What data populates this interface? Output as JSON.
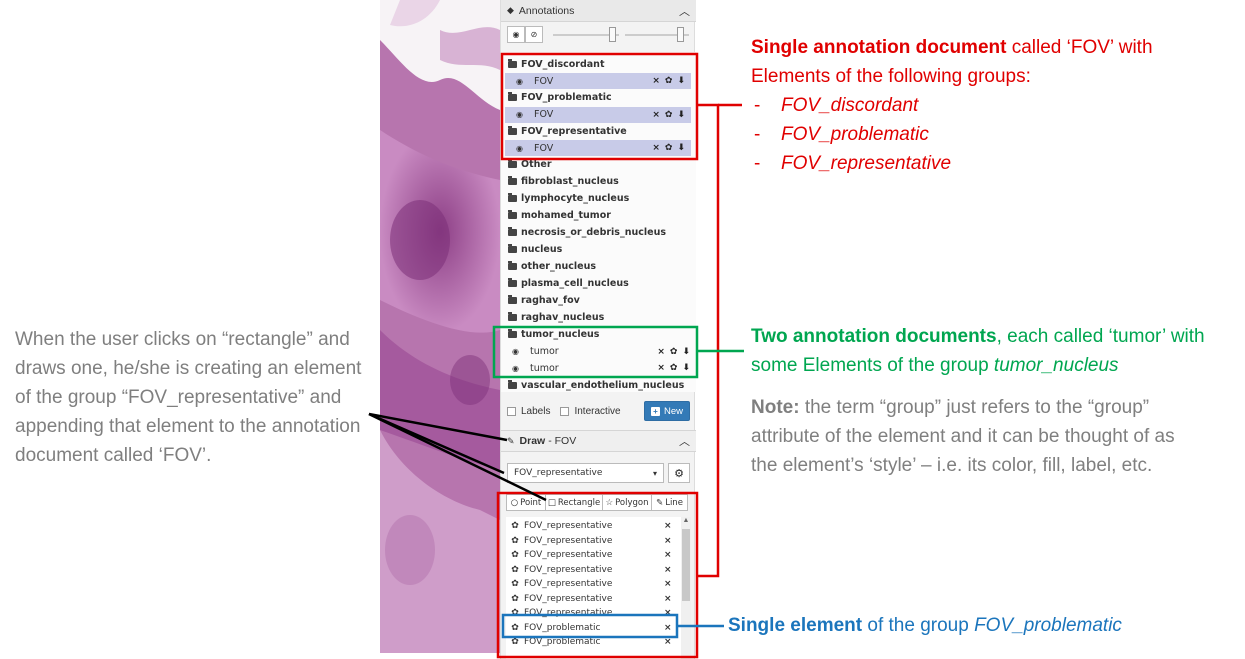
{
  "left_note": "When the user clicks on “rectangle” and draws one, he/she is creating an element of the group “FOV_representative” and appending that element to the annotation document called ‘FOV’.",
  "red_callout": {
    "bold": "Single annotation document",
    "rest": " called ‘FOV’ with Elements of the following groups:",
    "dash": "-",
    "items": [
      "FOV_discordant",
      "FOV_problematic",
      "FOV_representative"
    ]
  },
  "green_callout": {
    "bold": "Two annotation documents",
    "rest": ", each called ‘tumor’ with some Elements of the group ",
    "italic": "tumor_nucleus"
  },
  "gray_note": {
    "bold": "Note:",
    "rest": " the term “group” just refers to the “group” attribute of the element and it can be thought of as the element’s ‘style’ – i.e. its color, fill, label, etc."
  },
  "blue_callout": {
    "bold": "Single element",
    "rest": " of the group ",
    "italic": "FOV_problematic"
  },
  "annotations_panel": {
    "title": "Annotations",
    "chevron_icon": "chevron-up-icon",
    "folders": [
      {
        "name": "FOV_discordant",
        "docs": [
          {
            "label": "FOV",
            "highlight": true
          }
        ]
      },
      {
        "name": "FOV_problematic",
        "docs": [
          {
            "label": "FOV",
            "highlight": true
          }
        ]
      },
      {
        "name": "FOV_representative",
        "docs": [
          {
            "label": "FOV",
            "highlight": true
          }
        ]
      },
      {
        "name": "Other",
        "docs": []
      },
      {
        "name": "fibroblast_nucleus",
        "docs": []
      },
      {
        "name": "lymphocyte_nucleus",
        "docs": []
      },
      {
        "name": "mohamed_tumor",
        "docs": []
      },
      {
        "name": "necrosis_or_debris_nucleus",
        "docs": []
      },
      {
        "name": "nucleus",
        "docs": []
      },
      {
        "name": "other_nucleus",
        "docs": []
      },
      {
        "name": "plasma_cell_nucleus",
        "docs": []
      },
      {
        "name": "raghav_fov",
        "docs": []
      },
      {
        "name": "raghav_nucleus",
        "docs": []
      },
      {
        "name": "tumor_nucleus",
        "docs": [
          {
            "label": "tumor",
            "highlight": false
          },
          {
            "label": "tumor",
            "highlight": false
          }
        ]
      },
      {
        "name": "vascular_endothelium_nucleus",
        "docs": []
      }
    ],
    "labels_checkbox": "Labels",
    "interactive_checkbox": "Interactive",
    "new_button": "New",
    "icons": {
      "delete": "×",
      "settings": "✿",
      "download": "⬇",
      "eye": "👁"
    }
  },
  "draw_panel": {
    "title": "Draw",
    "doc_name": "- FOV",
    "group_select": "FOV_representative",
    "tools": [
      {
        "label": "Point",
        "icon": "○"
      },
      {
        "label": "Rectangle",
        "icon": "□"
      },
      {
        "label": "Polygon",
        "icon": "☆"
      },
      {
        "label": "Line",
        "icon": "✎"
      }
    ],
    "elements": [
      "FOV_representative",
      "FOV_representative",
      "FOV_representative",
      "FOV_representative",
      "FOV_representative",
      "FOV_representative",
      "FOV_representative",
      "FOV_problematic",
      "FOV_problematic"
    ]
  },
  "colors": {
    "red": "#e00000",
    "green": "#00a650",
    "blue": "#1b75bc",
    "gray": "#7f7f7f",
    "highlight": "#c8cbe8"
  }
}
